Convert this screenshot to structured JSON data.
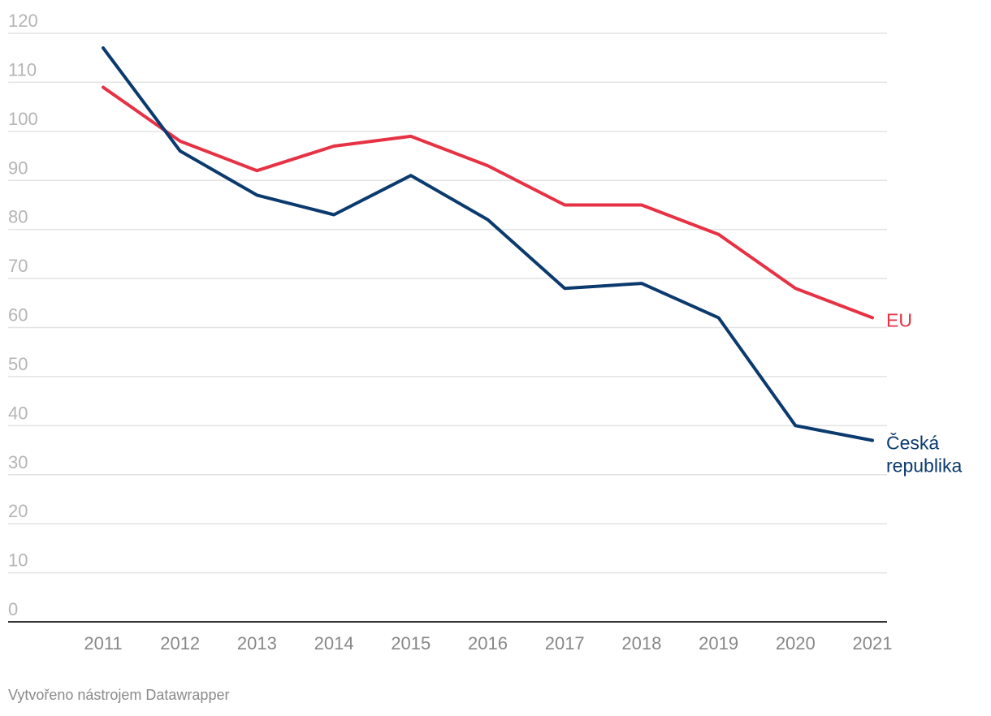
{
  "chart_data": {
    "type": "line",
    "categories": [
      "2011",
      "2012",
      "2013",
      "2014",
      "2015",
      "2016",
      "2017",
      "2018",
      "2019",
      "2020",
      "2021"
    ],
    "series": [
      {
        "name": "EU",
        "label_lines": [
          "EU"
        ],
        "color": "#e63244",
        "values": [
          109,
          98,
          92,
          97,
          99,
          93,
          85,
          85,
          79,
          68,
          62
        ]
      },
      {
        "name": "Česká republika",
        "label_lines": [
          "Česká",
          "republika"
        ],
        "color": "#0b3a6e",
        "values": [
          117,
          96,
          87,
          83,
          91,
          82,
          68,
          69,
          62,
          40,
          37
        ]
      }
    ],
    "yticks": [
      0,
      10,
      20,
      30,
      40,
      50,
      60,
      70,
      80,
      90,
      100,
      110,
      120
    ],
    "ylim": [
      0,
      120
    ],
    "grid": true,
    "legend": "inline-right",
    "title": "",
    "xlabel": "",
    "ylabel": ""
  },
  "footer": {
    "credit": "Vytvořeno nástrojem Datawrapper"
  }
}
